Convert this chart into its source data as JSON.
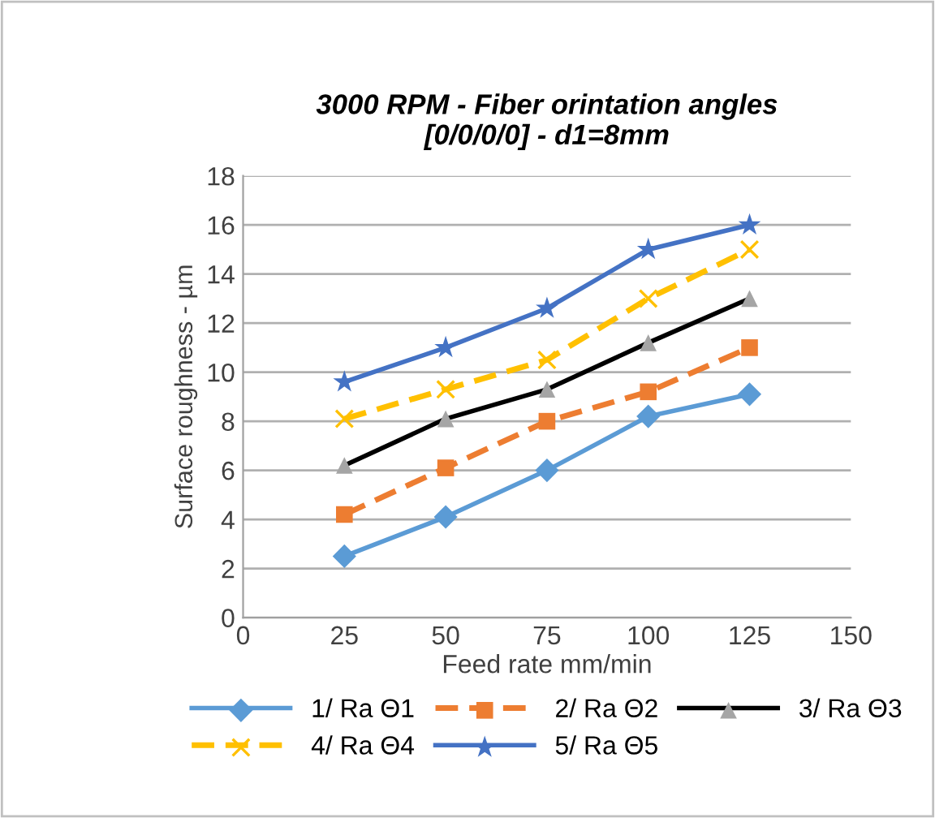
{
  "chart_data": {
    "type": "line",
    "title": "3000 RPM - Fiber orintation angles\n[0/0/0/0] - d1=8mm",
    "xlabel": "Feed rate mm/min",
    "ylabel": "Surface roughness - µm",
    "x": [
      25,
      50,
      75,
      100,
      125
    ],
    "series": [
      {
        "name": "1/ Ra Θ1",
        "color": "#5b9bd5",
        "marker": "diamond",
        "line_style": "solid",
        "values": [
          2.5,
          4.1,
          6.0,
          8.2,
          9.1
        ]
      },
      {
        "name": "2/ Ra Θ2",
        "color": "#ed7d31",
        "marker": "square",
        "line_style": "dashed",
        "values": [
          4.2,
          6.1,
          8.0,
          9.2,
          11.0
        ]
      },
      {
        "name": "3/ Ra Θ3",
        "color": "#000000",
        "colors": [
          "#a5a5a5",
          "#a5a5a5",
          "#a5a5a5",
          "#a5a5a5",
          "#a5a5a5"
        ],
        "marker": "triangle",
        "line_style": "solid",
        "values": [
          6.2,
          8.1,
          9.3,
          11.2,
          13.0
        ]
      },
      {
        "name": "4/ Ra Θ4",
        "color": "#ffc000",
        "marker": "cross",
        "line_style": "dashed",
        "values": [
          8.1,
          9.3,
          10.5,
          13.0,
          15.0
        ]
      },
      {
        "name": "5/ Ra Θ5",
        "color": "#4472c4",
        "marker": "star",
        "line_style": "solid",
        "values": [
          9.6,
          11.0,
          12.6,
          15.0,
          16.0
        ]
      }
    ],
    "xlim": [
      0,
      150
    ],
    "xticks": [
      0,
      25,
      50,
      75,
      100,
      125,
      150
    ],
    "ylim": [
      0,
      18
    ],
    "yticks": [
      0,
      2,
      4,
      6,
      8,
      10,
      12,
      14,
      16,
      18
    ],
    "grid": "y",
    "legend": "bottom"
  }
}
